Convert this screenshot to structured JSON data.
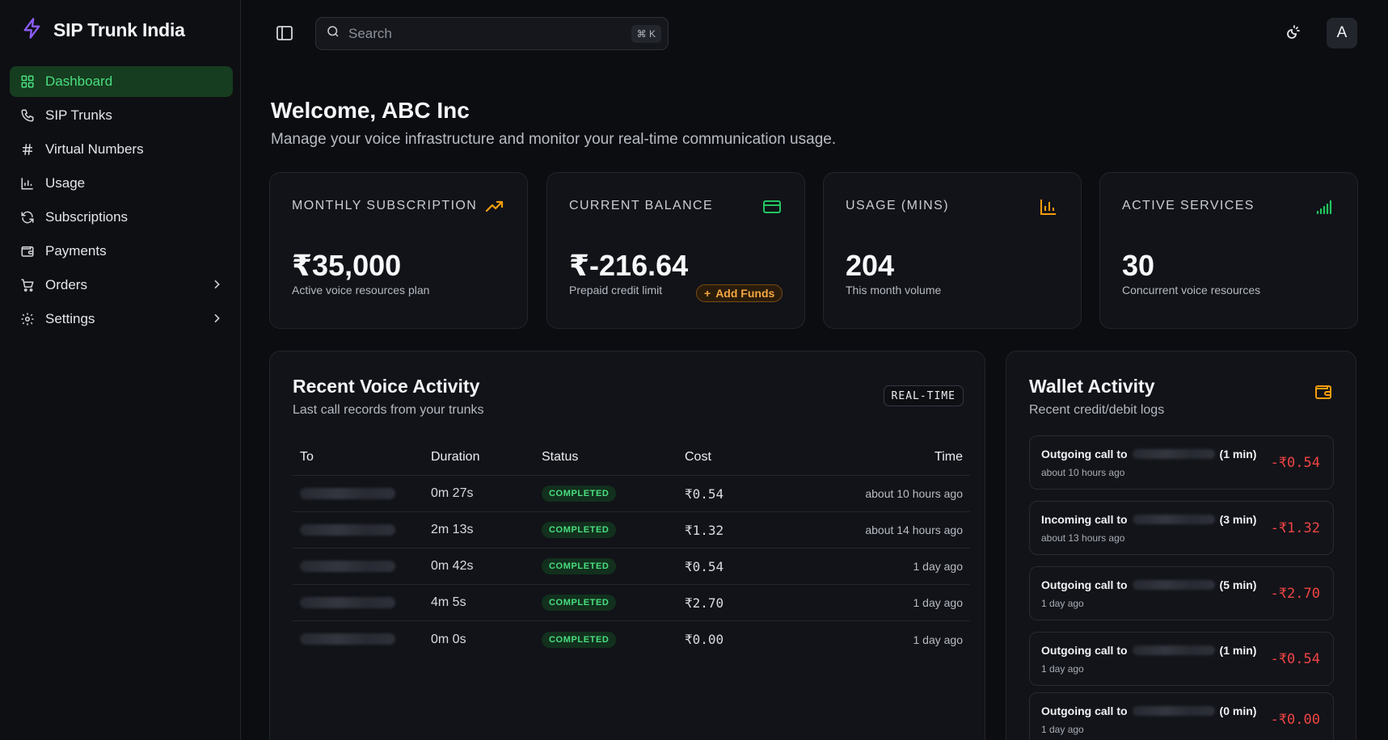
{
  "app": {
    "brand": "SIP Trunk India",
    "accent": "#4ade80",
    "brand_icon": "lightning-bolt-icon"
  },
  "sidebar": {
    "items": [
      {
        "label": "Dashboard",
        "icon": "grid-icon",
        "active": true
      },
      {
        "label": "SIP Trunks",
        "icon": "phone-icon"
      },
      {
        "label": "Virtual Numbers",
        "icon": "hash-icon"
      },
      {
        "label": "Usage",
        "icon": "bar-chart-icon"
      },
      {
        "label": "Subscriptions",
        "icon": "refresh-icon"
      },
      {
        "label": "Payments",
        "icon": "wallet-icon"
      },
      {
        "label": "Orders",
        "icon": "cart-icon",
        "expandable": true
      },
      {
        "label": "Settings",
        "icon": "gear-icon",
        "expandable": true
      }
    ]
  },
  "topbar": {
    "search_placeholder": "Search",
    "search_shortcut": "⌘ K",
    "avatar_initial": "A"
  },
  "header": {
    "title": "Welcome, ABC Inc",
    "subtitle": "Manage your voice infrastructure and monitor your real-time communication usage."
  },
  "stats": [
    {
      "label": "MONTHLY SUBSCRIPTION",
      "value": "₹35,000",
      "sub": "Active voice resources plan",
      "icon": "trending-up-icon",
      "color": "#f59e0b"
    },
    {
      "label": "CURRENT BALANCE",
      "value": "₹-216.64",
      "sub": "Prepaid credit limit",
      "action": "Add Funds",
      "icon": "credit-card-icon",
      "color": "#22c55e"
    },
    {
      "label": "USAGE (MINS)",
      "value": "204",
      "sub": "This month volume",
      "icon": "bar-chart-icon",
      "color": "#f59e0b"
    },
    {
      "label": "ACTIVE SERVICES",
      "value": "30",
      "sub": "Concurrent voice resources",
      "icon": "signal-icon",
      "color": "#22c55e"
    }
  ],
  "voice_activity": {
    "title": "Recent Voice Activity",
    "subtitle": "Last call records from your trunks",
    "badge": "REAL-TIME",
    "columns": [
      "To",
      "Duration",
      "Status",
      "Cost",
      "Time"
    ],
    "rows": [
      {
        "duration": "0m 27s",
        "status": "COMPLETED",
        "cost": "₹0.54",
        "time": "about 10 hours ago"
      },
      {
        "duration": "2m 13s",
        "status": "COMPLETED",
        "cost": "₹1.32",
        "time": "about 14 hours ago"
      },
      {
        "duration": "0m 42s",
        "status": "COMPLETED",
        "cost": "₹0.54",
        "time": "1 day ago"
      },
      {
        "duration": "4m 5s",
        "status": "COMPLETED",
        "cost": "₹2.70",
        "time": "1 day ago"
      },
      {
        "duration": "0m 0s",
        "status": "COMPLETED",
        "cost": "₹0.00",
        "time": "1 day ago"
      }
    ]
  },
  "wallet": {
    "title": "Wallet Activity",
    "subtitle": "Recent credit/debit logs",
    "items": [
      {
        "prefix": "Outgoing call to",
        "suffix": "(1 min)",
        "time": "about 10 hours ago",
        "amount": "-₹0.54"
      },
      {
        "prefix": "Incoming call to",
        "suffix": "(3 min)",
        "time": "about 13 hours ago",
        "amount": "-₹1.32"
      },
      {
        "prefix": "Outgoing call to",
        "suffix": "(5 min)",
        "time": "1 day ago",
        "amount": "-₹2.70"
      },
      {
        "prefix": "Outgoing call to",
        "suffix": "(1 min)",
        "time": "1 day ago",
        "amount": "-₹0.54"
      },
      {
        "prefix": "Outgoing call to",
        "suffix": "(0 min)",
        "time": "1 day ago",
        "amount": "-₹0.00"
      }
    ]
  }
}
